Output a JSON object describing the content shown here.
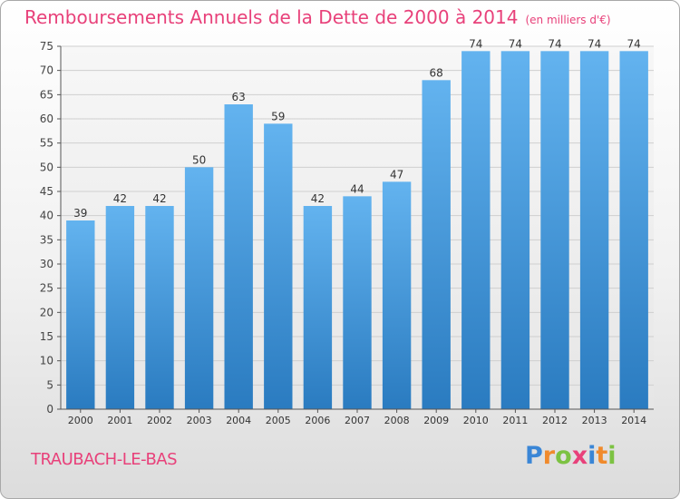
{
  "title": "Remboursements Annuels de la Dette de 2000 à 2014",
  "unit": "(en milliers d'€)",
  "commune": "TRAUBACH-LE-BAS",
  "logo": {
    "letters": [
      "P",
      "r",
      "o",
      "x",
      "i",
      "t",
      "i"
    ],
    "colors": [
      "#3a86d6",
      "#f08a2c",
      "#7cc242",
      "#e8417a",
      "#3a86d6",
      "#f08a2c",
      "#7cc242"
    ]
  },
  "colors": {
    "accent": "#e8417a",
    "bar_top": "#63b3ef",
    "bar_bottom": "#2a7bc0"
  },
  "chart_data": {
    "type": "bar",
    "categories": [
      "2000",
      "2001",
      "2002",
      "2003",
      "2004",
      "2005",
      "2006",
      "2007",
      "2008",
      "2009",
      "2010",
      "2011",
      "2012",
      "2013",
      "2014"
    ],
    "values": [
      39,
      42,
      42,
      50,
      63,
      59,
      42,
      44,
      47,
      68,
      74,
      74,
      74,
      74,
      74
    ],
    "ylim": [
      0,
      75
    ],
    "yticks": [
      0,
      5,
      10,
      15,
      20,
      25,
      30,
      35,
      40,
      45,
      50,
      55,
      60,
      65,
      70,
      75
    ],
    "grid": true
  }
}
